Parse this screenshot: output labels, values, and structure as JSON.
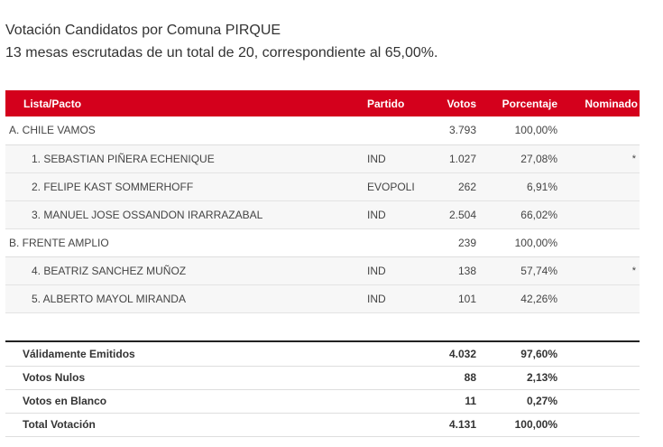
{
  "header": {
    "title": "Votación Candidatos por Comuna PIRQUE",
    "subtitle": "13 mesas escrutadas de un total de 20, correspondiente al 65,00%."
  },
  "table": {
    "columns": [
      "Lista/Pacto",
      "Partido",
      "Votos",
      "Porcentaje",
      "Nominado"
    ],
    "rows": [
      {
        "type": "pact",
        "name": "A. CHILE VAMOS",
        "party": "",
        "votes": "3.793",
        "pct": "100,00%",
        "nominated": ""
      },
      {
        "type": "candidate",
        "name": "1. SEBASTIAN PIÑERA ECHENIQUE",
        "party": "IND",
        "votes": "1.027",
        "pct": "27,08%",
        "nominated": "*"
      },
      {
        "type": "candidate",
        "name": "2. FELIPE KAST SOMMERHOFF",
        "party": "EVOPOLI",
        "votes": "262",
        "pct": "6,91%",
        "nominated": ""
      },
      {
        "type": "candidate",
        "name": "3. MANUEL JOSE OSSANDON IRARRAZABAL",
        "party": "IND",
        "votes": "2.504",
        "pct": "66,02%",
        "nominated": ""
      },
      {
        "type": "pact",
        "name": "B. FRENTE AMPLIO",
        "party": "",
        "votes": "239",
        "pct": "100,00%",
        "nominated": ""
      },
      {
        "type": "candidate",
        "name": "4. BEATRIZ SANCHEZ MUÑOZ",
        "party": "IND",
        "votes": "138",
        "pct": "57,74%",
        "nominated": "*"
      },
      {
        "type": "candidate",
        "name": "5. ALBERTO MAYOL MIRANDA",
        "party": "IND",
        "votes": "101",
        "pct": "42,26%",
        "nominated": ""
      }
    ]
  },
  "totals": [
    {
      "label": "Válidamente Emitidos",
      "votes": "4.032",
      "pct": "97,60%"
    },
    {
      "label": "Votos Nulos",
      "votes": "88",
      "pct": "2,13%"
    },
    {
      "label": "Votos en Blanco",
      "votes": "11",
      "pct": "0,27%"
    },
    {
      "label": "Total Votación",
      "votes": "4.131",
      "pct": "100,00%"
    }
  ],
  "colors": {
    "header_bg": "#d4001c",
    "header_text": "#ffffff",
    "candidate_row_bg": "#f7f7f7"
  }
}
